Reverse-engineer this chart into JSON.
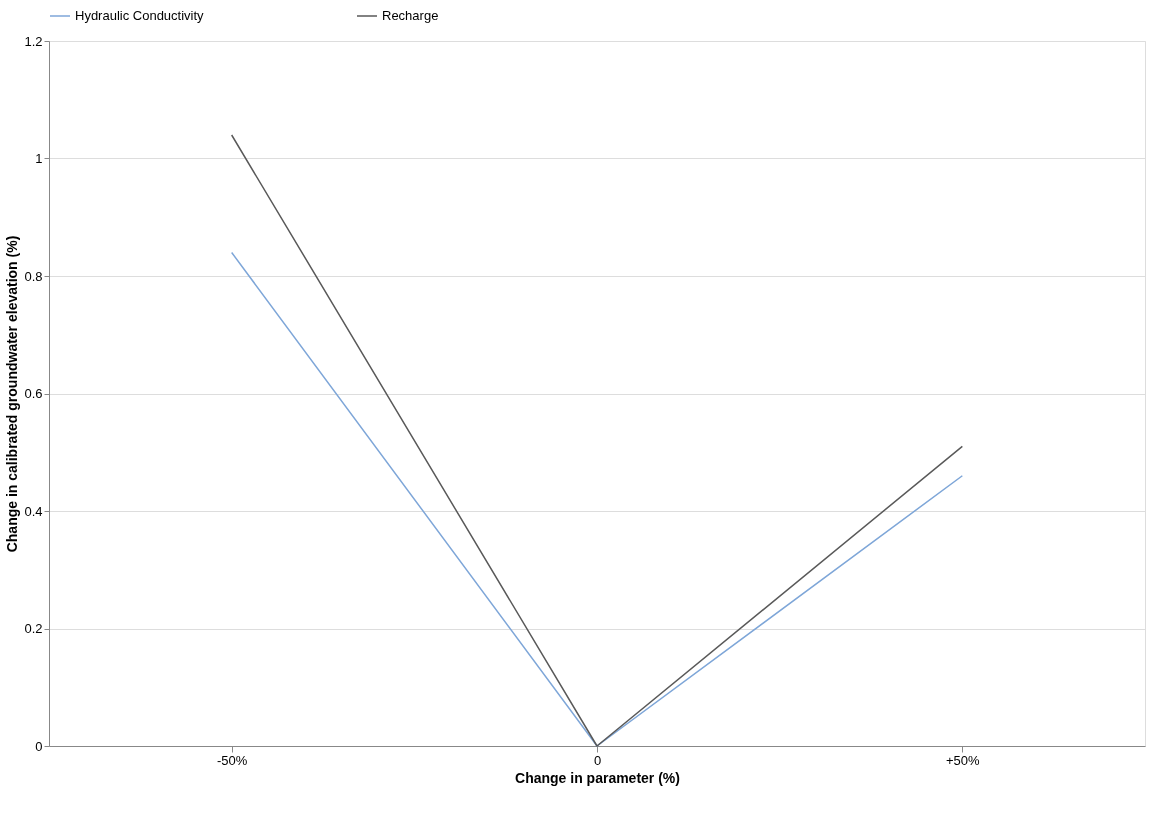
{
  "chart_data": {
    "type": "line",
    "xlabel": "Change in parameter (%)",
    "ylabel": "Change in calibrated groundwater elevation (%)",
    "categories": [
      "-50%",
      "0",
      "+50%"
    ],
    "series": [
      {
        "name": "Hydraulic Conductivity",
        "color": "#7ea6d8",
        "values": [
          0.84,
          0,
          0.46
        ]
      },
      {
        "name": "Recharge",
        "color": "#595959",
        "values": [
          1.04,
          0,
          0.51
        ]
      }
    ],
    "ylim": [
      0,
      1.2
    ],
    "yticks": [
      0,
      0.2,
      0.4,
      0.6,
      0.8,
      1,
      1.2
    ],
    "grid": "y",
    "legend": "top",
    "marker": "none",
    "line_style": "solid"
  }
}
